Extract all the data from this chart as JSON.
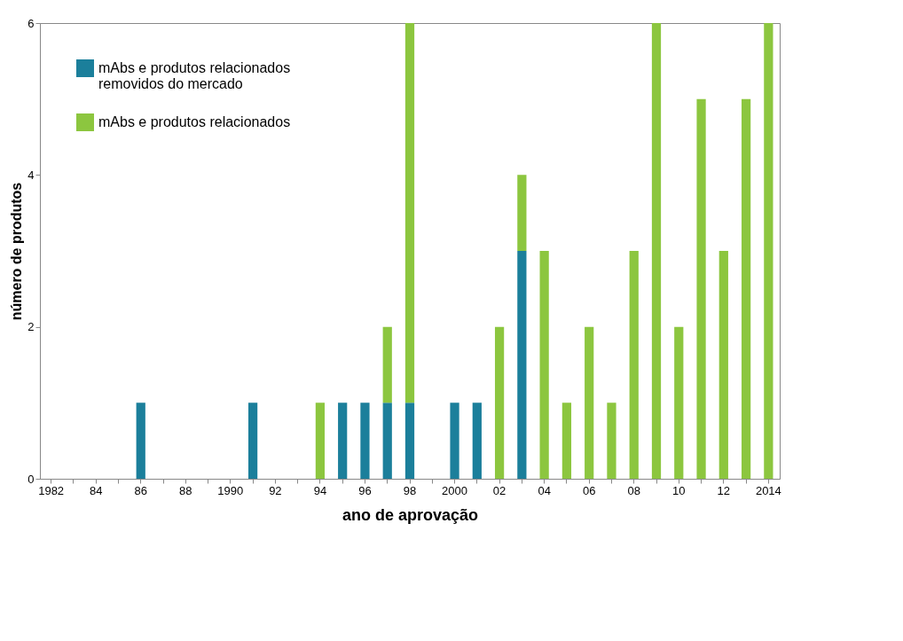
{
  "chart_data": {
    "type": "bar",
    "stacked": true,
    "xlabel": "ano de aprovação",
    "ylabel": "número de produtos",
    "categories": [
      "1982",
      null,
      "84",
      null,
      "86",
      null,
      "88",
      null,
      "1990",
      null,
      "92",
      null,
      "94",
      null,
      "96",
      null,
      "98",
      null,
      "2000",
      null,
      "02",
      null,
      "04",
      null,
      "06",
      null,
      "08",
      null,
      "10",
      null,
      "12",
      null,
      "2014"
    ],
    "series": [
      {
        "name": "mAbs e produtos relacionados removidos do mercado",
        "color": "#1b7f9b",
        "values": [
          null,
          null,
          null,
          null,
          1,
          null,
          null,
          null,
          null,
          1,
          null,
          null,
          null,
          1,
          1,
          1,
          1,
          null,
          1,
          1,
          null,
          3,
          null,
          null,
          null,
          null,
          null,
          null,
          null,
          null,
          null,
          null,
          null
        ]
      },
      {
        "name": "mAbs e produtos relacionados",
        "color": "#8cc63f",
        "values": [
          null,
          null,
          null,
          null,
          null,
          null,
          null,
          null,
          null,
          null,
          null,
          null,
          1,
          null,
          null,
          1,
          5,
          null,
          null,
          null,
          2,
          1,
          3,
          1,
          2,
          1,
          3,
          6,
          2,
          5,
          3,
          5,
          6
        ]
      }
    ],
    "ylim": [
      0,
      6
    ],
    "yticks": [
      0,
      2,
      4,
      6
    ],
    "grid": false,
    "legend": "top left"
  }
}
